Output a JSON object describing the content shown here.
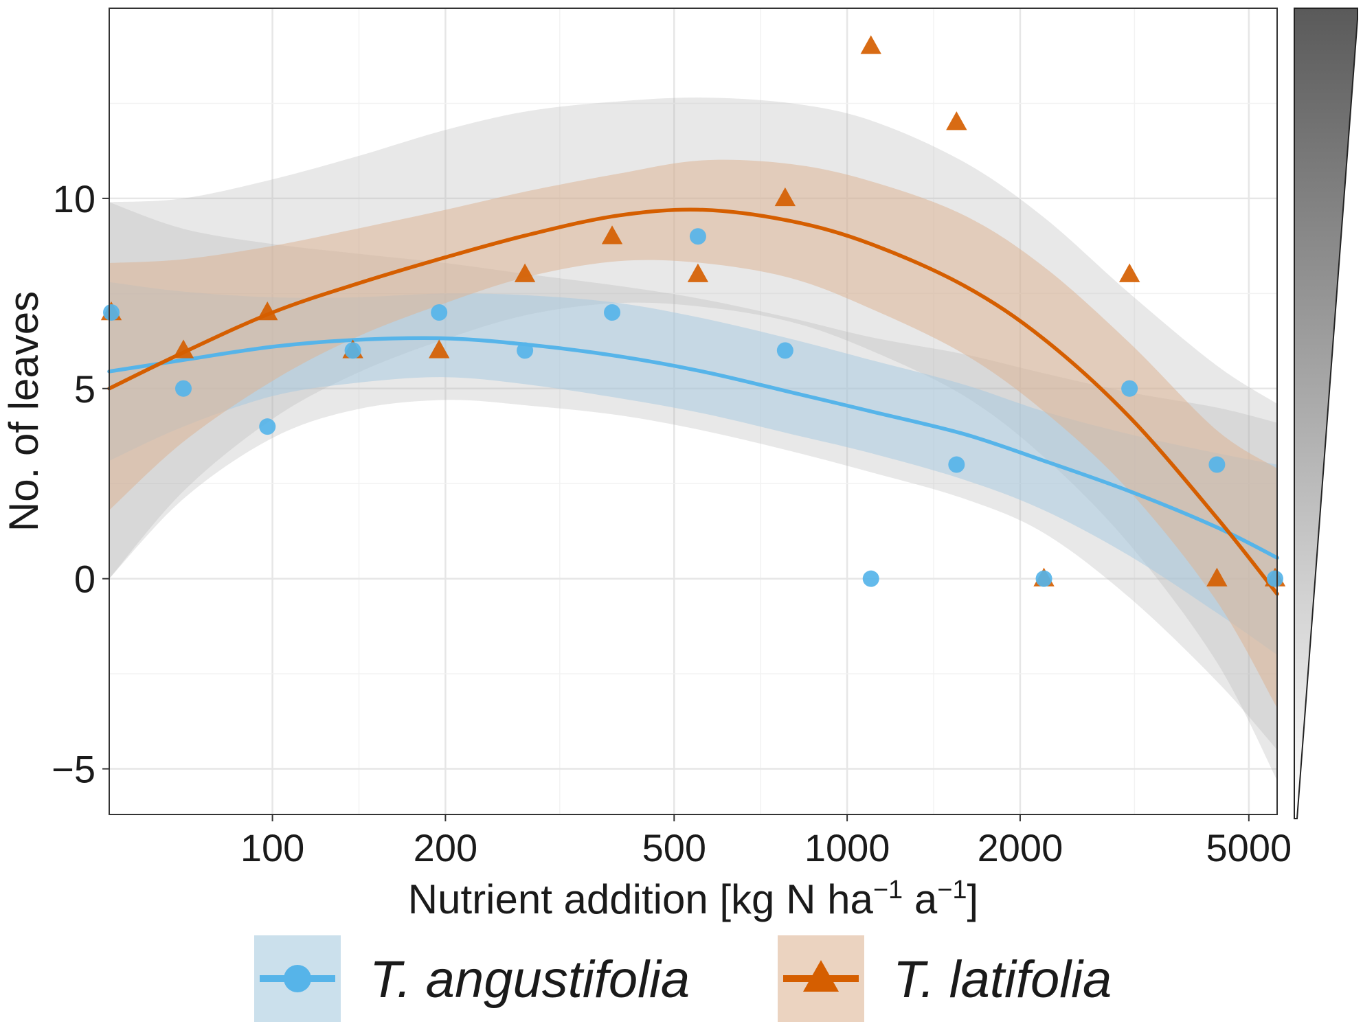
{
  "chart_data": {
    "type": "scatter",
    "xlabel": "Nutrient addition [kg N ha",
    "xlabel_sup1": "−1",
    "xlabel_mid": " a",
    "xlabel_sup2": "−1",
    "xlabel_end": "]",
    "ylabel": "No. of leaves",
    "x_scale": "log",
    "xlim": [
      52,
      5600
    ],
    "ylim": [
      -6.2,
      15
    ],
    "x_ticks": [
      100,
      200,
      500,
      1000,
      2000,
      5000
    ],
    "x_tick_labels": [
      "100",
      "200",
      "500",
      "1000",
      "2000",
      "5000"
    ],
    "y_ticks": [
      -5,
      0,
      5,
      10
    ],
    "y_tick_labels": [
      "−5",
      "0",
      "5",
      "10"
    ],
    "grid": true,
    "legend_position": "bottom",
    "series": [
      {
        "name": "T. angustifolia",
        "color": "#56B4E9",
        "band_color": "#A9CBE0",
        "marker": "circle",
        "x": [
          52,
          70,
          98,
          138,
          195,
          275,
          390,
          550,
          780,
          1100,
          1550,
          2200,
          3100,
          4400,
          6200
        ],
        "y": [
          7,
          5,
          4,
          6,
          7,
          6,
          7,
          9,
          6,
          0,
          3,
          0,
          5,
          3,
          0
        ],
        "fit": [
          {
            "x": 52,
            "y": 5.45,
            "lo": 3.1,
            "hi": 7.8
          },
          {
            "x": 70,
            "y": 5.75,
            "lo": 4.0,
            "hi": 7.55
          },
          {
            "x": 100,
            "y": 6.1,
            "lo": 4.8,
            "hi": 7.4
          },
          {
            "x": 140,
            "y": 6.28,
            "lo": 5.15,
            "hi": 7.4
          },
          {
            "x": 200,
            "y": 6.32,
            "lo": 5.3,
            "hi": 7.5
          },
          {
            "x": 280,
            "y": 6.15,
            "lo": 5.1,
            "hi": 7.45
          },
          {
            "x": 400,
            "y": 5.85,
            "lo": 4.75,
            "hi": 7.25
          },
          {
            "x": 560,
            "y": 5.45,
            "lo": 4.35,
            "hi": 6.85
          },
          {
            "x": 800,
            "y": 4.9,
            "lo": 3.8,
            "hi": 6.3
          },
          {
            "x": 1100,
            "y": 4.4,
            "lo": 3.3,
            "hi": 5.75
          },
          {
            "x": 1600,
            "y": 3.8,
            "lo": 2.6,
            "hi": 5.1
          },
          {
            "x": 2200,
            "y": 3.1,
            "lo": 1.8,
            "hi": 4.4
          },
          {
            "x": 3100,
            "y": 2.3,
            "lo": 0.6,
            "hi": 3.8
          },
          {
            "x": 4400,
            "y": 1.35,
            "lo": -0.9,
            "hi": 3.3
          },
          {
            "x": 5600,
            "y": 0.55,
            "lo": -2.0,
            "hi": 3.0
          }
        ],
        "outer": [
          {
            "x": 52,
            "lo": 0.0,
            "hi": 9.9
          },
          {
            "x": 70,
            "lo": 2.1,
            "hi": 9.2
          },
          {
            "x": 100,
            "lo": 3.7,
            "hi": 8.8
          },
          {
            "x": 140,
            "lo": 4.45,
            "hi": 8.55
          },
          {
            "x": 200,
            "lo": 4.7,
            "hi": 8.3
          },
          {
            "x": 280,
            "lo": 4.55,
            "hi": 8.0
          },
          {
            "x": 400,
            "lo": 4.3,
            "hi": 7.7
          },
          {
            "x": 560,
            "lo": 3.9,
            "hi": 7.35
          },
          {
            "x": 800,
            "lo": 3.35,
            "hi": 6.85
          },
          {
            "x": 1100,
            "lo": 2.8,
            "hi": 6.35
          },
          {
            "x": 1600,
            "lo": 2.1,
            "hi": 5.9
          },
          {
            "x": 2200,
            "lo": 1.2,
            "hi": 5.4
          },
          {
            "x": 3100,
            "lo": -0.5,
            "hi": 4.9
          },
          {
            "x": 4400,
            "lo": -2.7,
            "hi": 4.5
          },
          {
            "x": 5600,
            "lo": -4.5,
            "hi": 4.1
          }
        ]
      },
      {
        "name": "T. latifolia",
        "color": "#D55E00",
        "band_color": "#DDB596",
        "marker": "triangle",
        "x": [
          52,
          70,
          98,
          138,
          195,
          275,
          390,
          550,
          780,
          1100,
          1550,
          2200,
          3100,
          4400,
          6200
        ],
        "y": [
          7,
          6,
          7,
          6,
          6,
          8,
          9,
          8,
          10,
          14,
          12,
          0,
          8,
          0,
          0
        ],
        "fit": [
          {
            "x": 52,
            "y": 5.0,
            "lo": 1.8,
            "hi": 8.3
          },
          {
            "x": 70,
            "y": 5.95,
            "lo": 3.6,
            "hi": 8.4
          },
          {
            "x": 100,
            "y": 7.0,
            "lo": 5.2,
            "hi": 8.75
          },
          {
            "x": 140,
            "y": 7.75,
            "lo": 6.35,
            "hi": 9.2
          },
          {
            "x": 200,
            "y": 8.45,
            "lo": 7.25,
            "hi": 9.7
          },
          {
            "x": 280,
            "y": 9.05,
            "lo": 7.95,
            "hi": 10.2
          },
          {
            "x": 400,
            "y": 9.55,
            "lo": 8.35,
            "hi": 10.65
          },
          {
            "x": 560,
            "y": 9.7,
            "lo": 8.3,
            "hi": 11.0
          },
          {
            "x": 800,
            "y": 9.4,
            "lo": 7.9,
            "hi": 10.9
          },
          {
            "x": 1100,
            "y": 8.8,
            "lo": 7.1,
            "hi": 10.45
          },
          {
            "x": 1600,
            "y": 7.7,
            "lo": 5.9,
            "hi": 9.55
          },
          {
            "x": 2200,
            "y": 6.3,
            "lo": 4.4,
            "hi": 8.2
          },
          {
            "x": 3100,
            "y": 4.25,
            "lo": 2.3,
            "hi": 6.2
          },
          {
            "x": 4400,
            "y": 1.6,
            "lo": -0.6,
            "hi": 3.9
          },
          {
            "x": 5600,
            "y": -0.4,
            "lo": -3.4,
            "hi": 2.9
          }
        ],
        "outer": [
          {
            "x": 52,
            "lo": 0.0,
            "hi": 9.9
          },
          {
            "x": 70,
            "lo": 2.3,
            "hi": 10.0
          },
          {
            "x": 100,
            "lo": 4.2,
            "hi": 10.5
          },
          {
            "x": 140,
            "lo": 5.4,
            "hi": 11.1
          },
          {
            "x": 200,
            "lo": 6.3,
            "hi": 11.8
          },
          {
            "x": 280,
            "lo": 6.95,
            "hi": 12.3
          },
          {
            "x": 400,
            "lo": 7.25,
            "hi": 12.55
          },
          {
            "x": 560,
            "lo": 7.15,
            "hi": 12.65
          },
          {
            "x": 800,
            "lo": 6.75,
            "hi": 12.5
          },
          {
            "x": 1100,
            "lo": 6.0,
            "hi": 12.05
          },
          {
            "x": 1600,
            "lo": 4.8,
            "hi": 10.95
          },
          {
            "x": 2200,
            "lo": 3.2,
            "hi": 9.5
          },
          {
            "x": 3100,
            "lo": 0.9,
            "hi": 7.5
          },
          {
            "x": 4400,
            "lo": -2.2,
            "hi": 5.6
          },
          {
            "x": 5600,
            "lo": -5.3,
            "hi": 4.6
          }
        ]
      }
    ],
    "gradient_bar": {
      "top_color": "#5a5a5a",
      "bottom_color": "#ffffff"
    }
  }
}
